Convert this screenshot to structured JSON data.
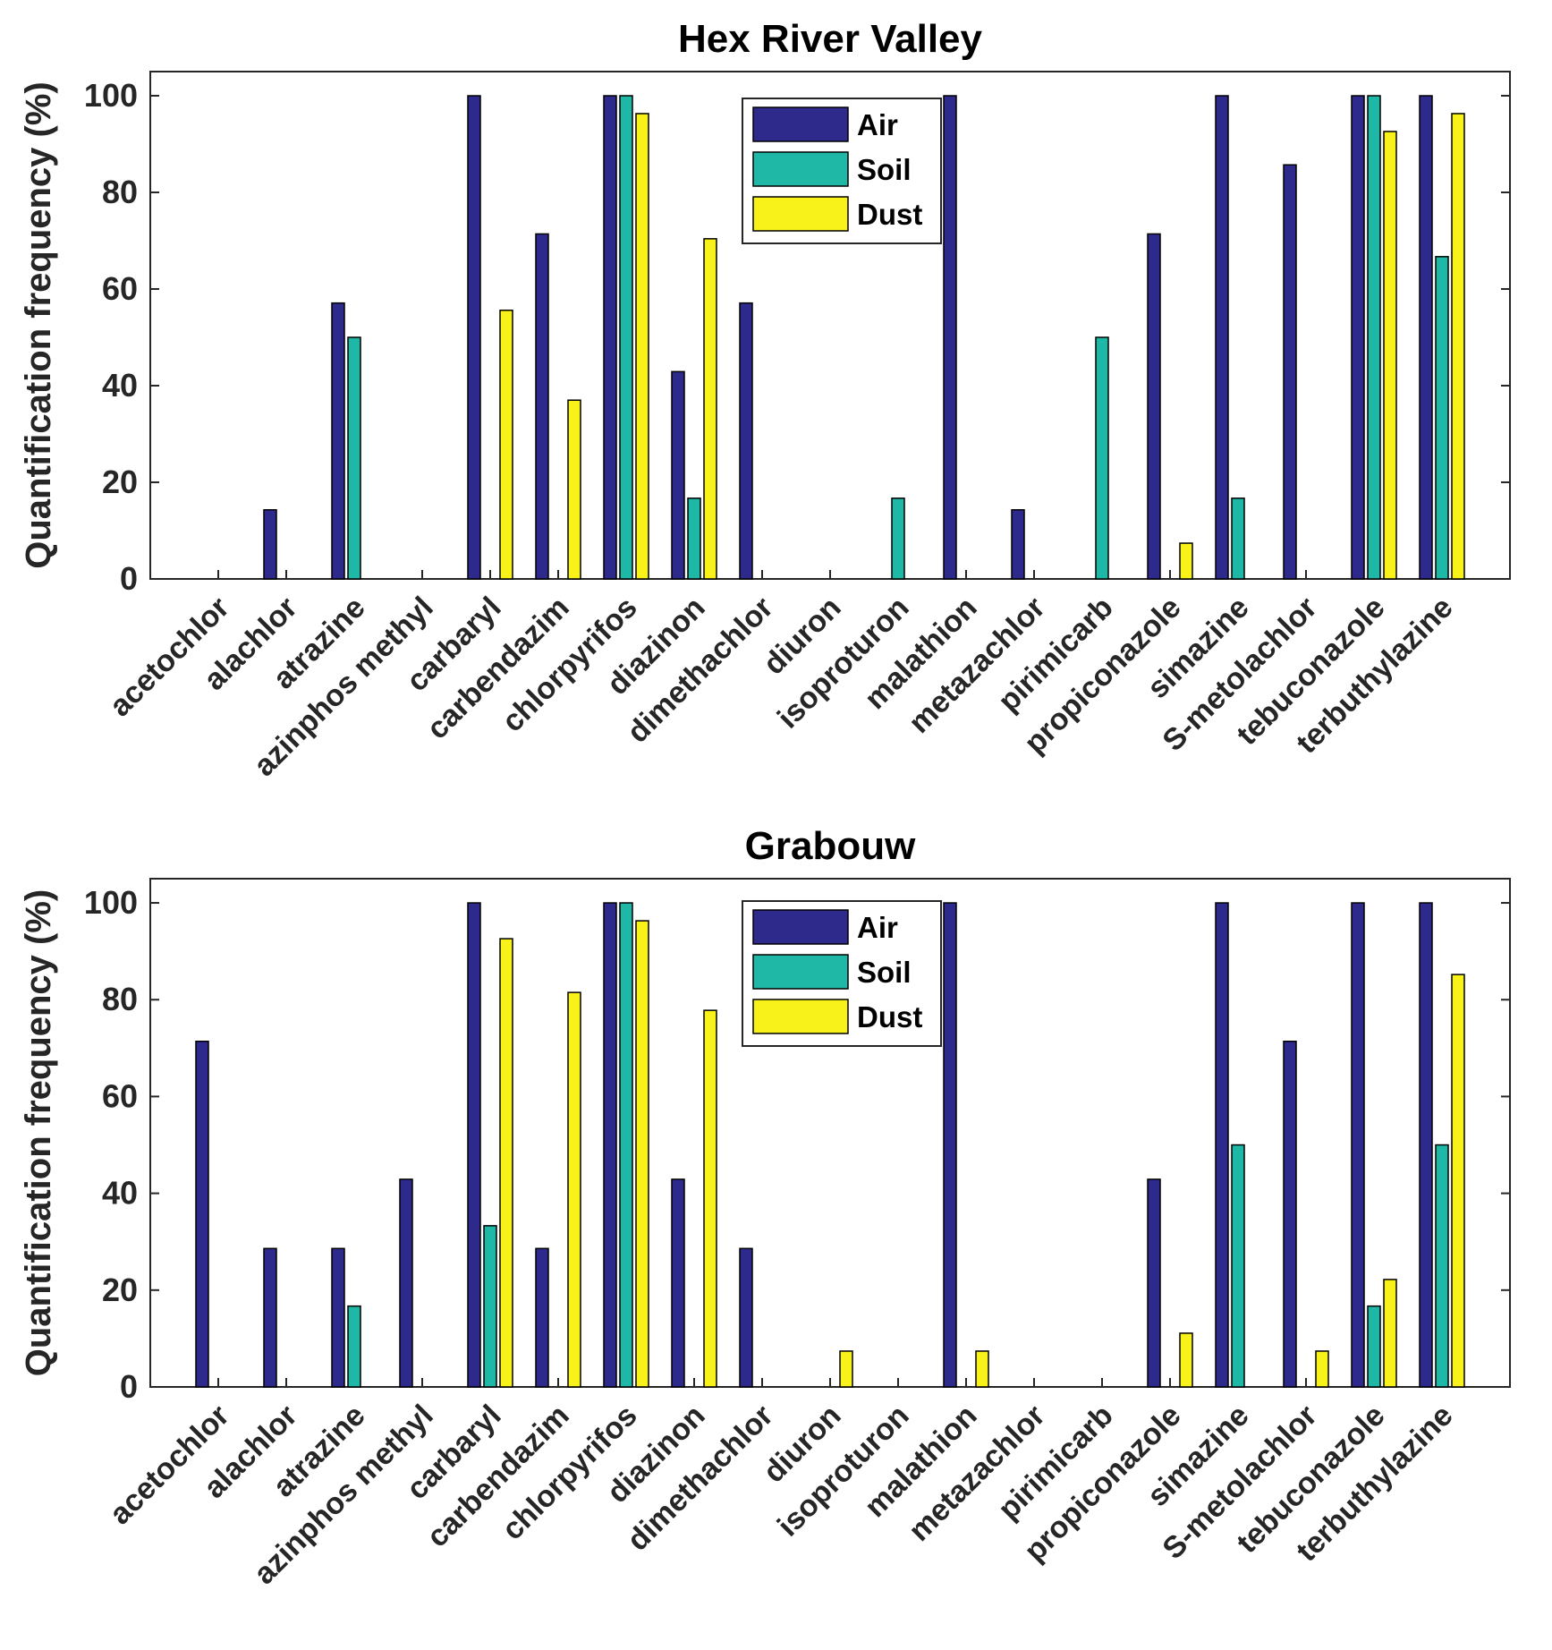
{
  "chart_data": [
    {
      "type": "bar",
      "title": "Hex River Valley",
      "xlabel": "",
      "ylabel": "Quantification frequency (%)",
      "ylim": [
        0,
        105
      ],
      "yticks": [
        0,
        20,
        40,
        60,
        80,
        100
      ],
      "grid": false,
      "legend_position": "top-center",
      "categories": [
        "acetochlor",
        "alachlor",
        "atrazine",
        "azinphos methyl",
        "carbaryl",
        "carbendazim",
        "chlorpyrifos",
        "diazinon",
        "dimethachlor",
        "diuron",
        "isoproturon",
        "malathion",
        "metazachlor",
        "pirimicarb",
        "propiconazole",
        "simazine",
        "S-metolachlor",
        "tebuconazole",
        "terbuthylazine"
      ],
      "series": [
        {
          "name": "Air",
          "color": "#2e2a8c",
          "values": [
            0,
            14.3,
            57.1,
            0,
            100,
            71.4,
            100,
            42.9,
            57.1,
            0,
            0,
            100,
            14.3,
            0,
            71.4,
            100,
            85.7,
            100,
            100
          ]
        },
        {
          "name": "Soil",
          "color": "#1fb8a6",
          "values": [
            0,
            0,
            50,
            0,
            0,
            0,
            100,
            16.7,
            0,
            0,
            16.7,
            0,
            0,
            50,
            0,
            16.7,
            0,
            100,
            66.7
          ]
        },
        {
          "name": "Dust",
          "color": "#f9f21a",
          "values": [
            0,
            0,
            0,
            0,
            55.6,
            37,
            96.3,
            70.4,
            0,
            0,
            0,
            0,
            0,
            0,
            7.4,
            0,
            0,
            92.6,
            96.3
          ]
        }
      ]
    },
    {
      "type": "bar",
      "title": "Grabouw",
      "xlabel": "",
      "ylabel": "Quantification frequency (%)",
      "ylim": [
        0,
        105
      ],
      "yticks": [
        0,
        20,
        40,
        60,
        80,
        100
      ],
      "grid": false,
      "legend_position": "top-center",
      "categories": [
        "acetochlor",
        "alachlor",
        "atrazine",
        "azinphos methyl",
        "carbaryl",
        "carbendazim",
        "chlorpyrifos",
        "diazinon",
        "dimethachlor",
        "diuron",
        "isoproturon",
        "malathion",
        "metazachlor",
        "pirimicarb",
        "propiconazole",
        "simazine",
        "S-metolachlor",
        "tebuconazole",
        "terbuthylazine"
      ],
      "series": [
        {
          "name": "Air",
          "color": "#2e2a8c",
          "values": [
            71.4,
            28.6,
            28.6,
            42.9,
            100,
            28.6,
            100,
            42.9,
            28.6,
            0,
            0,
            100,
            0,
            0,
            42.9,
            100,
            71.4,
            100,
            100
          ]
        },
        {
          "name": "Soil",
          "color": "#1fb8a6",
          "values": [
            0,
            0,
            16.7,
            0,
            33.3,
            0,
            100,
            0,
            0,
            0,
            0,
            0,
            0,
            0,
            0,
            50,
            0,
            16.7,
            50
          ]
        },
        {
          "name": "Dust",
          "color": "#f9f21a",
          "values": [
            0,
            0,
            0,
            0,
            92.6,
            81.5,
            96.3,
            77.8,
            0,
            7.4,
            0,
            7.4,
            0,
            0,
            11.1,
            0,
            7.4,
            22.2,
            85.2
          ]
        }
      ]
    }
  ]
}
